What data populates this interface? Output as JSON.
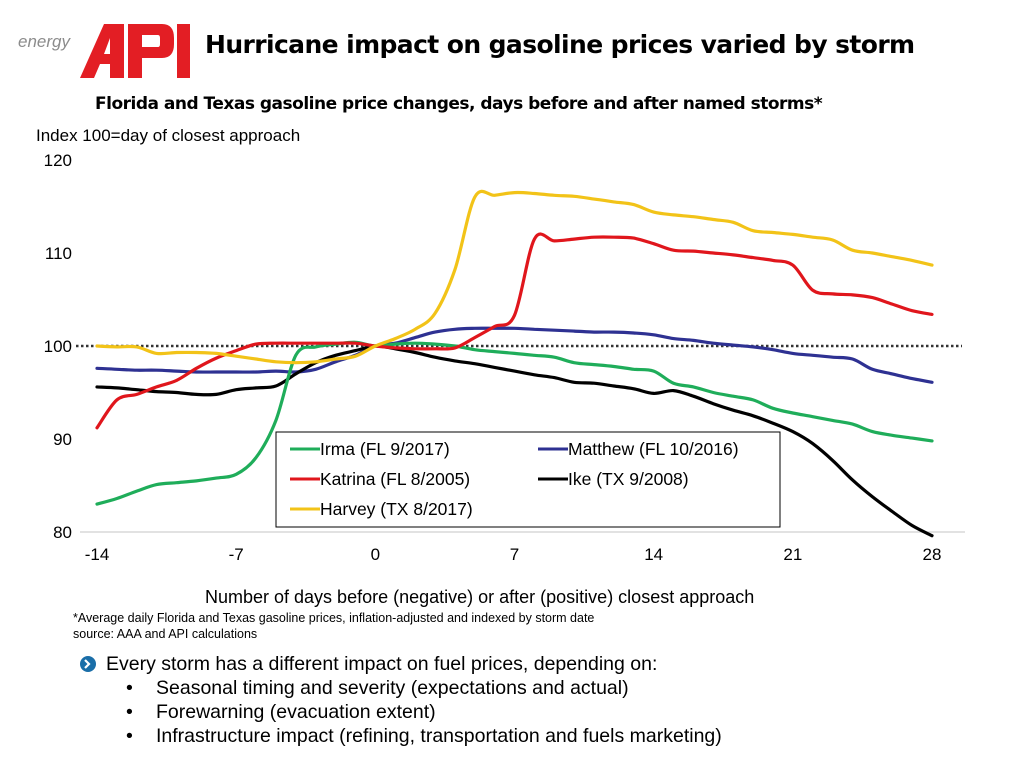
{
  "logo": {
    "prefix": "energy",
    "brand": "API",
    "brand_color": "#e31e24"
  },
  "header": {
    "title": "Hurricane impact on gasoline prices varied by storm",
    "subtitle": "Florida and Texas gasoline price changes, days before and after named storms*"
  },
  "chart_data": {
    "type": "line",
    "title": "Florida and Texas gasoline price changes, days before and after named storms*",
    "ylabel": "Index 100=day of closest approach",
    "xlabel": "Number of days before (negative) or after (positive) closest approach",
    "xlim": [
      -14,
      28
    ],
    "ylim": [
      80,
      120
    ],
    "xticks": [
      "-14",
      "-7",
      "0",
      "7",
      "14",
      "21",
      "28"
    ],
    "xtick_values": [
      -14,
      -7,
      0,
      7,
      14,
      21,
      28
    ],
    "yticks": [
      "80",
      "90",
      "100",
      "110",
      "120"
    ],
    "ytick_values": [
      80,
      90,
      100,
      110,
      120
    ],
    "reference_line": {
      "value": 100,
      "style": "dotted"
    },
    "grid": false,
    "legend_placement": "bottom-center",
    "series": [
      {
        "name": "Irma (FL 9/2017)",
        "color": "#1fad5a",
        "x": [
          -14,
          -13,
          -12,
          -11,
          -10,
          -9,
          -8,
          -7,
          -6,
          -5,
          -4,
          -3,
          -2,
          -1,
          0,
          1,
          2,
          3,
          4,
          5,
          6,
          7,
          8,
          9,
          10,
          11,
          12,
          13,
          14,
          15,
          16,
          17,
          18,
          19,
          20,
          21,
          22,
          23,
          24,
          25,
          26,
          27,
          28
        ],
        "y": [
          83,
          83.6,
          84.4,
          85.1,
          85.3,
          85.5,
          85.8,
          86.2,
          88,
          92,
          99,
          99.9,
          100.2,
          100.4,
          100,
          100.2,
          100.3,
          100.2,
          100,
          99.6,
          99.4,
          99.2,
          99,
          98.8,
          98.2,
          98,
          97.8,
          97.5,
          97.3,
          96,
          95.6,
          95,
          94.6,
          94.2,
          93.3,
          92.8,
          92.4,
          92,
          91.6,
          90.8,
          90.4,
          90.1,
          89.8
        ]
      },
      {
        "name": "Katrina (FL 8/2005)",
        "color": "#e0161c",
        "x": [
          -14,
          -13,
          -12,
          -11,
          -10,
          -9,
          -8,
          -7,
          -6,
          -5,
          -4,
          -3,
          -2,
          -1,
          0,
          1,
          2,
          3,
          4,
          5,
          6,
          7,
          8,
          9,
          10,
          11,
          12,
          13,
          14,
          15,
          16,
          17,
          18,
          19,
          20,
          21,
          22,
          23,
          24,
          25,
          26,
          27,
          28
        ],
        "y": [
          91.2,
          94.2,
          94.8,
          95.6,
          96.3,
          97.6,
          98.7,
          99.5,
          100.2,
          100.3,
          100.3,
          100.3,
          100.3,
          100.3,
          100,
          99.8,
          99.7,
          99.7,
          99.8,
          100.9,
          102.1,
          103.3,
          111.5,
          111.3,
          111.5,
          111.7,
          111.7,
          111.6,
          111,
          110.3,
          110.2,
          110,
          109.8,
          109.5,
          109.2,
          108.7,
          106,
          105.6,
          105.5,
          105.2,
          104.5,
          103.8,
          103.4
        ]
      },
      {
        "name": "Harvey (TX 8/2017)",
        "color": "#f2c318",
        "x": [
          -14,
          -13,
          -12,
          -11,
          -10,
          -9,
          -8,
          -7,
          -6,
          -5,
          -4,
          -3,
          -2,
          -1,
          0,
          1,
          2,
          3,
          4,
          5,
          6,
          7,
          8,
          9,
          10,
          11,
          12,
          13,
          14,
          15,
          16,
          17,
          18,
          19,
          20,
          21,
          22,
          23,
          24,
          25,
          26,
          27,
          28
        ],
        "y": [
          100,
          99.9,
          99.9,
          99.2,
          99.3,
          99.3,
          99.2,
          98.9,
          98.6,
          98.3,
          98.2,
          98.3,
          98.6,
          98.9,
          100,
          100.8,
          101.8,
          103.5,
          108.2,
          116,
          116.2,
          116.5,
          116.4,
          116.2,
          116.1,
          115.8,
          115.5,
          115.2,
          114.4,
          114.1,
          113.9,
          113.6,
          113.3,
          112.4,
          112.2,
          112,
          111.7,
          111.4,
          110.3,
          110,
          109.6,
          109.2,
          108.7
        ]
      },
      {
        "name": "Matthew (FL 10/2016)",
        "color": "#2e3192",
        "x": [
          -14,
          -13,
          -12,
          -11,
          -10,
          -9,
          -8,
          -7,
          -6,
          -5,
          -4,
          -3,
          -2,
          -1,
          0,
          1,
          2,
          3,
          4,
          5,
          6,
          7,
          8,
          9,
          10,
          11,
          12,
          13,
          14,
          15,
          16,
          17,
          18,
          19,
          20,
          21,
          22,
          23,
          24,
          25,
          26,
          27,
          28
        ],
        "y": [
          97.6,
          97.5,
          97.4,
          97.4,
          97.3,
          97.2,
          97.2,
          97.2,
          97.2,
          97.3,
          97.2,
          97.5,
          98.3,
          99,
          100,
          100.3,
          100.9,
          101.5,
          101.8,
          101.9,
          101.9,
          101.9,
          101.8,
          101.7,
          101.6,
          101.5,
          101.5,
          101.4,
          101.2,
          100.8,
          100.6,
          100.3,
          100.1,
          99.9,
          99.6,
          99.2,
          99,
          98.8,
          98.6,
          97.5,
          97,
          96.5,
          96.1
        ]
      },
      {
        "name": "Ike (TX 9/2008)",
        "color": "#000000",
        "x": [
          -14,
          -13,
          -12,
          -11,
          -10,
          -9,
          -8,
          -7,
          -6,
          -5,
          -4,
          -3,
          -2,
          -1,
          0,
          1,
          2,
          3,
          4,
          5,
          6,
          7,
          8,
          9,
          10,
          11,
          12,
          13,
          14,
          15,
          16,
          17,
          18,
          19,
          20,
          21,
          22,
          23,
          24,
          25,
          26,
          27,
          28
        ],
        "y": [
          95.6,
          95.5,
          95.3,
          95.1,
          95,
          94.8,
          94.8,
          95.3,
          95.5,
          95.7,
          97,
          98.2,
          99,
          99.5,
          100,
          99.7,
          99.3,
          98.8,
          98.4,
          98.1,
          97.7,
          97.3,
          96.9,
          96.6,
          96.1,
          96,
          95.7,
          95.4,
          94.9,
          95.2,
          94.6,
          93.8,
          93.1,
          92.5,
          91.7,
          90.8,
          89.5,
          87.7,
          85.6,
          83.8,
          82.2,
          80.7,
          79.6
        ]
      }
    ]
  },
  "footnote": {
    "note": "*Average daily Florida and Texas gasoline prices, inflation-adjusted and indexed by storm date",
    "source": "source:  AAA and API calculations"
  },
  "bullets": {
    "main": "Every storm has a different impact on fuel prices, depending on:",
    "icon": "chevron-right-icon",
    "icon_color": "#1a6ea8",
    "sub_marker": "•",
    "items": [
      "Seasonal timing and severity (expectations and actual)",
      "Forewarning (evacuation extent)",
      "Infrastructure impact (refining, transportation and fuels marketing)"
    ]
  }
}
